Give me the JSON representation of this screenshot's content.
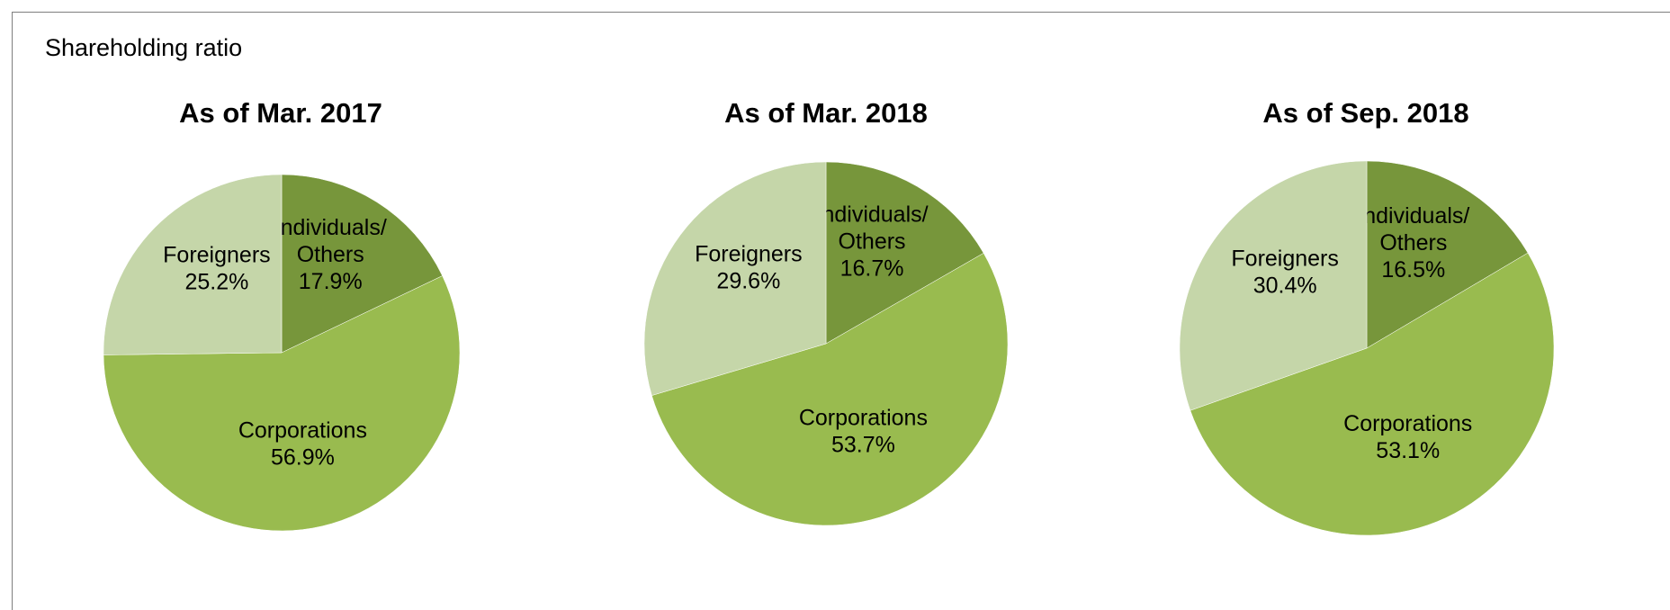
{
  "header": {
    "title": "Shareholding ratio"
  },
  "colors": {
    "Individuals/ Others": "#77963b",
    "Corporations": "#99bb4f",
    "Foreigners": "#c5d6a9"
  },
  "chart_data": [
    {
      "type": "pie",
      "title": "As of Mar. 2017",
      "slices": [
        {
          "label_lines": [
            "Individuals/",
            "Others"
          ],
          "name": "Individuals/ Others",
          "value": 17.9,
          "value_label": "17.9%"
        },
        {
          "label_lines": [
            "Corporations"
          ],
          "name": "Corporations",
          "value": 56.9,
          "value_label": "56.9%"
        },
        {
          "label_lines": [
            "Foreigners"
          ],
          "name": "Foreigners",
          "value": 25.2,
          "value_label": "25.2%"
        }
      ]
    },
    {
      "type": "pie",
      "title": "As of Mar. 2018",
      "slices": [
        {
          "label_lines": [
            "Individuals/",
            "Others"
          ],
          "name": "Individuals/ Others",
          "value": 16.7,
          "value_label": "16.7%"
        },
        {
          "label_lines": [
            "Corporations"
          ],
          "name": "Corporations",
          "value": 53.7,
          "value_label": "53.7%"
        },
        {
          "label_lines": [
            "Foreigners"
          ],
          "name": "Foreigners",
          "value": 29.6,
          "value_label": "29.6%"
        }
      ]
    },
    {
      "type": "pie",
      "title": "As of Sep. 2018",
      "slices": [
        {
          "label_lines": [
            "Individuals/",
            "Others"
          ],
          "name": "Individuals/ Others",
          "value": 16.5,
          "value_label": "16.5%"
        },
        {
          "label_lines": [
            "Corporations"
          ],
          "name": "Corporations",
          "value": 53.1,
          "value_label": "53.1%"
        },
        {
          "label_lines": [
            "Foreigners"
          ],
          "name": "Foreigners",
          "value": 30.4,
          "value_label": "30.4%"
        }
      ]
    }
  ]
}
